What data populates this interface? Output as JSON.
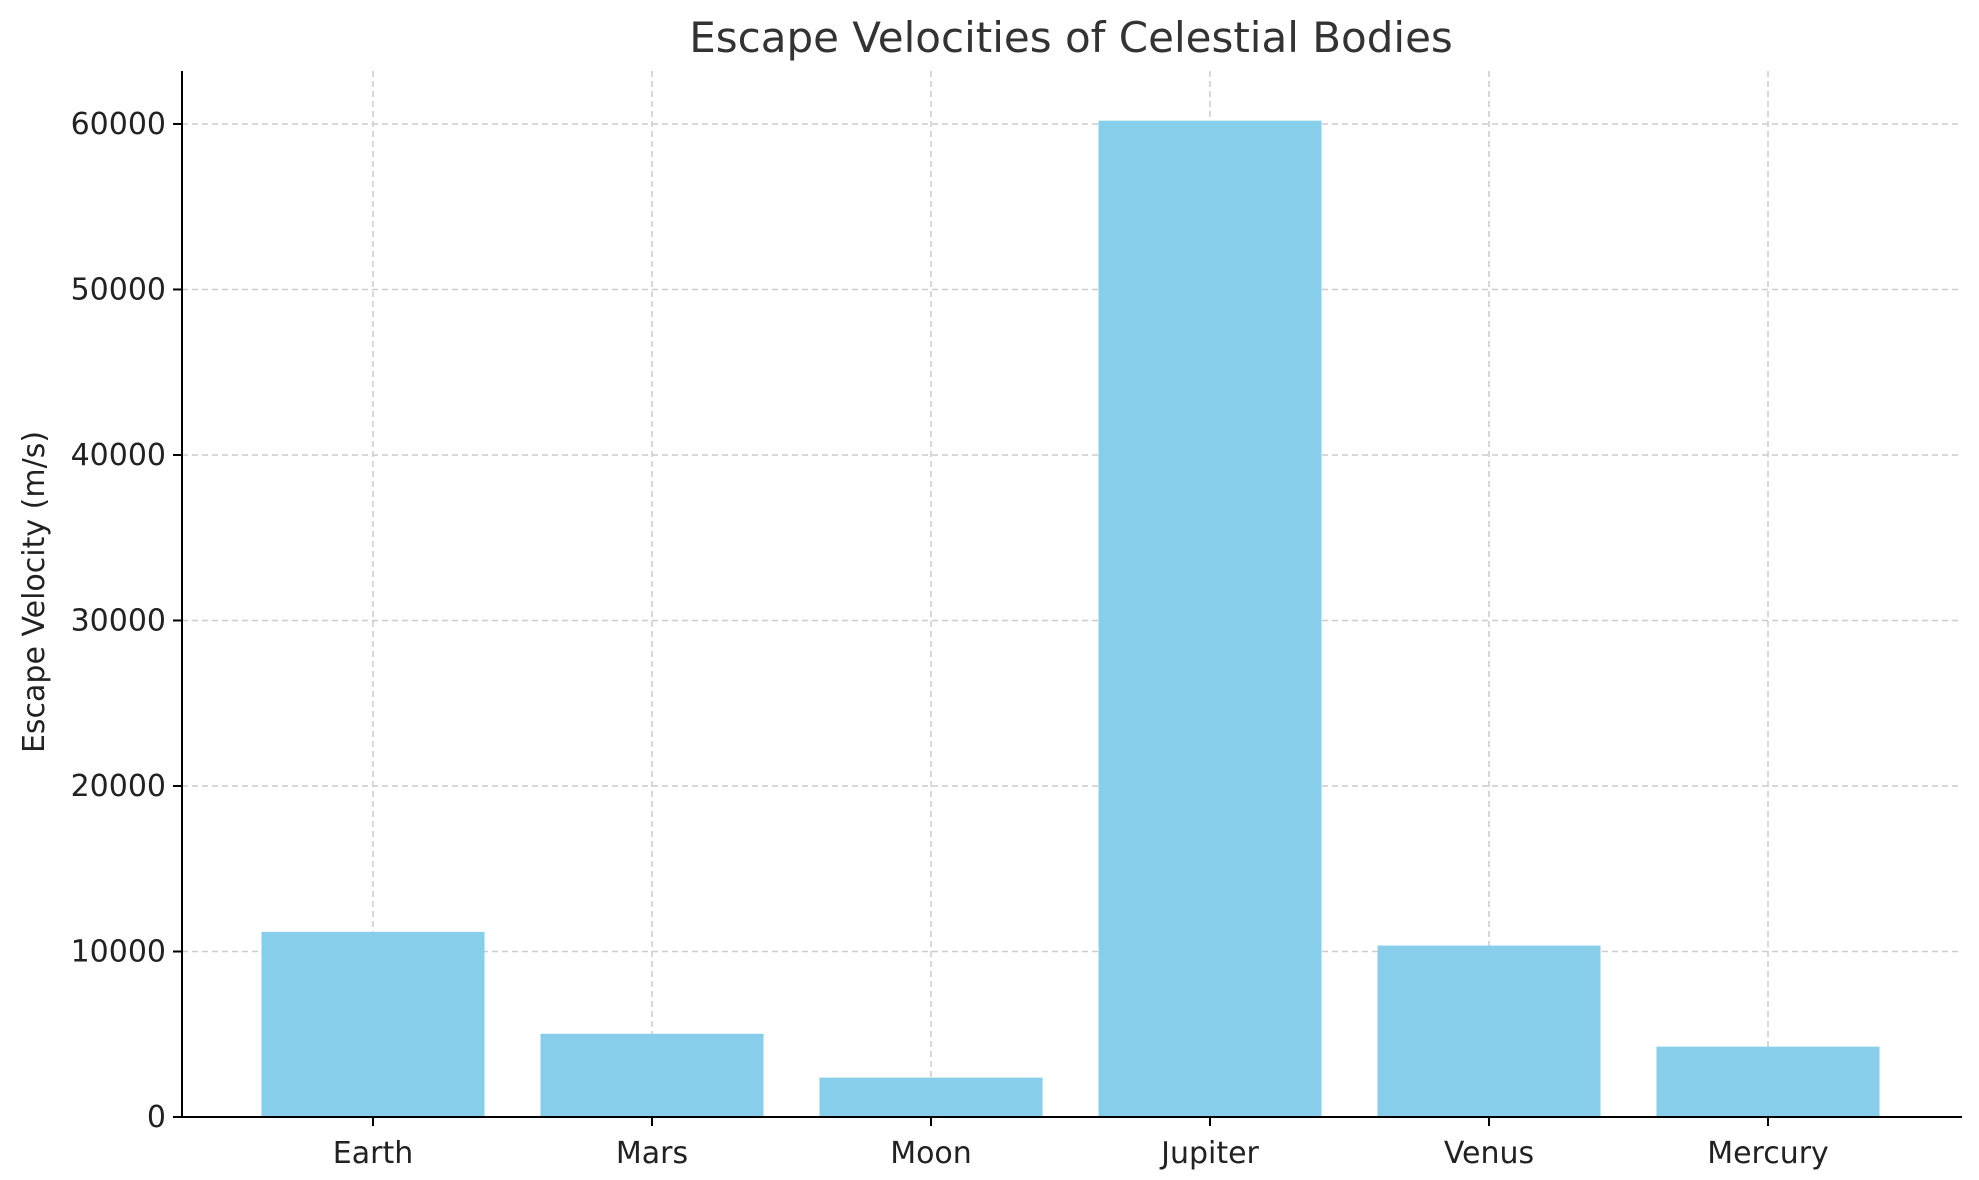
{
  "chart_data": {
    "type": "bar",
    "title": "Escape Velocities of Celestial Bodies",
    "xlabel": "",
    "ylabel": "Escape Velocity (m/s)",
    "categories": [
      "Earth",
      "Mars",
      "Moon",
      "Jupiter",
      "Venus",
      "Mercury"
    ],
    "values": [
      11186,
      5030,
      2380,
      60200,
      10360,
      4250
    ],
    "ylim": [
      0,
      63200
    ],
    "yticks": [
      0,
      10000,
      20000,
      30000,
      40000,
      50000,
      60000
    ],
    "grid": true,
    "bar_color": "#87CEEB",
    "grid_color": "#cccccc",
    "axis_color": "#000000"
  }
}
